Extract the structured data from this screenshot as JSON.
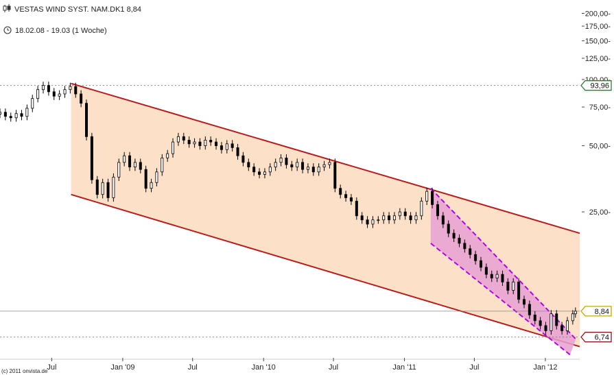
{
  "header": {
    "title": "VESTAS WIND SYST. NAM.DK1 8,84",
    "period": "18.02.08 - 19.03 (1 Woche)"
  },
  "copyright": "(c) 2011 onvista.de",
  "colors": {
    "channel_fill": "#fde0c8",
    "channel_line": "#b71c1c",
    "sub_channel_fill": "#e6a0d2",
    "sub_channel_line": "#b400e6",
    "candle": "#000000",
    "grid": "#999999",
    "badge_high": "#2e7d32",
    "badge_last": "#c8a400",
    "badge_low": "#8b1a1a"
  },
  "chart_data": {
    "type": "candlestick",
    "yscale": "log",
    "ylim": [
      5.5,
      230
    ],
    "yticks": [
      200,
      175,
      150,
      125,
      100,
      75,
      50,
      25
    ],
    "ytick_labels": [
      "200,00-",
      "175,00-",
      "150,00-",
      "125,00-",
      "100,00-",
      "75,00-",
      "50,00-",
      "25,00-"
    ],
    "xticks": [
      {
        "label": "Jul",
        "date": "2008-07-01"
      },
      {
        "label": "Jan '09",
        "date": "2009-01-01"
      },
      {
        "label": "Jul",
        "date": "2009-07-01"
      },
      {
        "label": "Jan '10",
        "date": "2010-01-01"
      },
      {
        "label": "Jul",
        "date": "2010-07-01"
      },
      {
        "label": "Jan '11",
        "date": "2011-01-01"
      },
      {
        "label": "Jul",
        "date": "2011-07-01"
      },
      {
        "label": "Jan '12",
        "date": "2012-01-01"
      }
    ],
    "reference_lines": [
      {
        "value": 93.96,
        "label": "93,96",
        "kind": "high"
      },
      {
        "value": 8.84,
        "label": "8,84",
        "kind": "last"
      },
      {
        "value": 6.74,
        "label": "6,74",
        "kind": "low"
      }
    ],
    "trend_channel": {
      "upper": [
        [
          "2008-08-20",
          96
        ],
        [
          "2012-03-30",
          20
        ]
      ],
      "lower": [
        [
          "2008-08-20",
          30
        ],
        [
          "2012-03-30",
          6.1
        ]
      ]
    },
    "sub_channel": {
      "upper": [
        [
          "2011-03-10",
          32
        ],
        [
          "2012-03-20",
          6.6
        ]
      ],
      "lower": [
        [
          "2011-03-10",
          18
        ],
        [
          "2012-03-05",
          5.6
        ]
      ]
    },
    "series": [
      {
        "date": "2008-02-18",
        "close": 71
      },
      {
        "date": "2008-03-03",
        "close": 68
      },
      {
        "date": "2008-03-17",
        "close": 67
      },
      {
        "date": "2008-03-31",
        "close": 70
      },
      {
        "date": "2008-04-14",
        "close": 68
      },
      {
        "date": "2008-04-28",
        "close": 74
      },
      {
        "date": "2008-05-12",
        "close": 82
      },
      {
        "date": "2008-05-26",
        "close": 90
      },
      {
        "date": "2008-06-09",
        "close": 94
      },
      {
        "date": "2008-06-23",
        "close": 88
      },
      {
        "date": "2008-07-07",
        "close": 84
      },
      {
        "date": "2008-07-21",
        "close": 86
      },
      {
        "date": "2008-08-04",
        "close": 90
      },
      {
        "date": "2008-08-18",
        "close": 93
      },
      {
        "date": "2008-09-01",
        "close": 86
      },
      {
        "date": "2008-09-15",
        "close": 78
      },
      {
        "date": "2008-09-29",
        "close": 55
      },
      {
        "date": "2008-10-13",
        "close": 35
      },
      {
        "date": "2008-10-27",
        "close": 30
      },
      {
        "date": "2008-11-10",
        "close": 34
      },
      {
        "date": "2008-11-24",
        "close": 29
      },
      {
        "date": "2008-12-08",
        "close": 36
      },
      {
        "date": "2008-12-22",
        "close": 42
      },
      {
        "date": "2009-01-05",
        "close": 45
      },
      {
        "date": "2009-01-19",
        "close": 40
      },
      {
        "date": "2009-02-02",
        "close": 42
      },
      {
        "date": "2009-02-16",
        "close": 39
      },
      {
        "date": "2009-03-02",
        "close": 32
      },
      {
        "date": "2009-03-16",
        "close": 34
      },
      {
        "date": "2009-03-30",
        "close": 38
      },
      {
        "date": "2009-04-13",
        "close": 44
      },
      {
        "date": "2009-04-27",
        "close": 46
      },
      {
        "date": "2009-05-11",
        "close": 52
      },
      {
        "date": "2009-05-25",
        "close": 55
      },
      {
        "date": "2009-06-08",
        "close": 53
      },
      {
        "date": "2009-06-22",
        "close": 51
      },
      {
        "date": "2009-07-06",
        "close": 52
      },
      {
        "date": "2009-07-20",
        "close": 50
      },
      {
        "date": "2009-08-03",
        "close": 53
      },
      {
        "date": "2009-08-17",
        "close": 52
      },
      {
        "date": "2009-08-31",
        "close": 50
      },
      {
        "date": "2009-09-14",
        "close": 48
      },
      {
        "date": "2009-09-28",
        "close": 51
      },
      {
        "date": "2009-10-12",
        "close": 49
      },
      {
        "date": "2009-10-26",
        "close": 45
      },
      {
        "date": "2009-11-09",
        "close": 42
      },
      {
        "date": "2009-11-23",
        "close": 40
      },
      {
        "date": "2009-12-07",
        "close": 38
      },
      {
        "date": "2009-12-21",
        "close": 37
      },
      {
        "date": "2010-01-04",
        "close": 38
      },
      {
        "date": "2010-01-18",
        "close": 40
      },
      {
        "date": "2010-02-01",
        "close": 42
      },
      {
        "date": "2010-02-15",
        "close": 44
      },
      {
        "date": "2010-03-01",
        "close": 41
      },
      {
        "date": "2010-03-15",
        "close": 40
      },
      {
        "date": "2010-03-29",
        "close": 42
      },
      {
        "date": "2010-04-12",
        "close": 39
      },
      {
        "date": "2010-04-26",
        "close": 40
      },
      {
        "date": "2010-05-10",
        "close": 38
      },
      {
        "date": "2010-05-24",
        "close": 40
      },
      {
        "date": "2010-06-07",
        "close": 41
      },
      {
        "date": "2010-06-21",
        "close": 42
      },
      {
        "date": "2010-07-05",
        "close": 32
      },
      {
        "date": "2010-07-19",
        "close": 30
      },
      {
        "date": "2010-08-02",
        "close": 29
      },
      {
        "date": "2010-08-16",
        "close": 28
      },
      {
        "date": "2010-08-30",
        "close": 24
      },
      {
        "date": "2010-09-13",
        "close": 23
      },
      {
        "date": "2010-09-27",
        "close": 22
      },
      {
        "date": "2010-10-11",
        "close": 23
      },
      {
        "date": "2010-10-25",
        "close": 23
      },
      {
        "date": "2010-11-08",
        "close": 24
      },
      {
        "date": "2010-11-22",
        "close": 23
      },
      {
        "date": "2010-12-06",
        "close": 24
      },
      {
        "date": "2010-12-20",
        "close": 25
      },
      {
        "date": "2011-01-03",
        "close": 24
      },
      {
        "date": "2011-01-17",
        "close": 23
      },
      {
        "date": "2011-01-31",
        "close": 24
      },
      {
        "date": "2011-02-14",
        "close": 28
      },
      {
        "date": "2011-02-28",
        "close": 31
      },
      {
        "date": "2011-03-14",
        "close": 27
      },
      {
        "date": "2011-03-28",
        "close": 24
      },
      {
        "date": "2011-04-11",
        "close": 22
      },
      {
        "date": "2011-04-25",
        "close": 20
      },
      {
        "date": "2011-05-09",
        "close": 19
      },
      {
        "date": "2011-05-23",
        "close": 18
      },
      {
        "date": "2011-06-06",
        "close": 17
      },
      {
        "date": "2011-06-20",
        "close": 16
      },
      {
        "date": "2011-07-04",
        "close": 15
      },
      {
        "date": "2011-07-18",
        "close": 14
      },
      {
        "date": "2011-08-01",
        "close": 13
      },
      {
        "date": "2011-08-15",
        "close": 12.5
      },
      {
        "date": "2011-08-29",
        "close": 13
      },
      {
        "date": "2011-09-12",
        "close": 12
      },
      {
        "date": "2011-09-26",
        "close": 11
      },
      {
        "date": "2011-10-10",
        "close": 12
      },
      {
        "date": "2011-10-24",
        "close": 10
      },
      {
        "date": "2011-11-07",
        "close": 9.5
      },
      {
        "date": "2011-11-21",
        "close": 8.5
      },
      {
        "date": "2011-12-05",
        "close": 8
      },
      {
        "date": "2011-12-19",
        "close": 7.6
      },
      {
        "date": "2012-01-02",
        "close": 7.2
      },
      {
        "date": "2012-01-16",
        "close": 8.6
      },
      {
        "date": "2012-01-30",
        "close": 7.6
      },
      {
        "date": "2012-02-13",
        "close": 7.2
      },
      {
        "date": "2012-02-27",
        "close": 8.0
      },
      {
        "date": "2012-03-12",
        "close": 8.6
      },
      {
        "date": "2012-03-19",
        "close": 8.84
      }
    ]
  }
}
